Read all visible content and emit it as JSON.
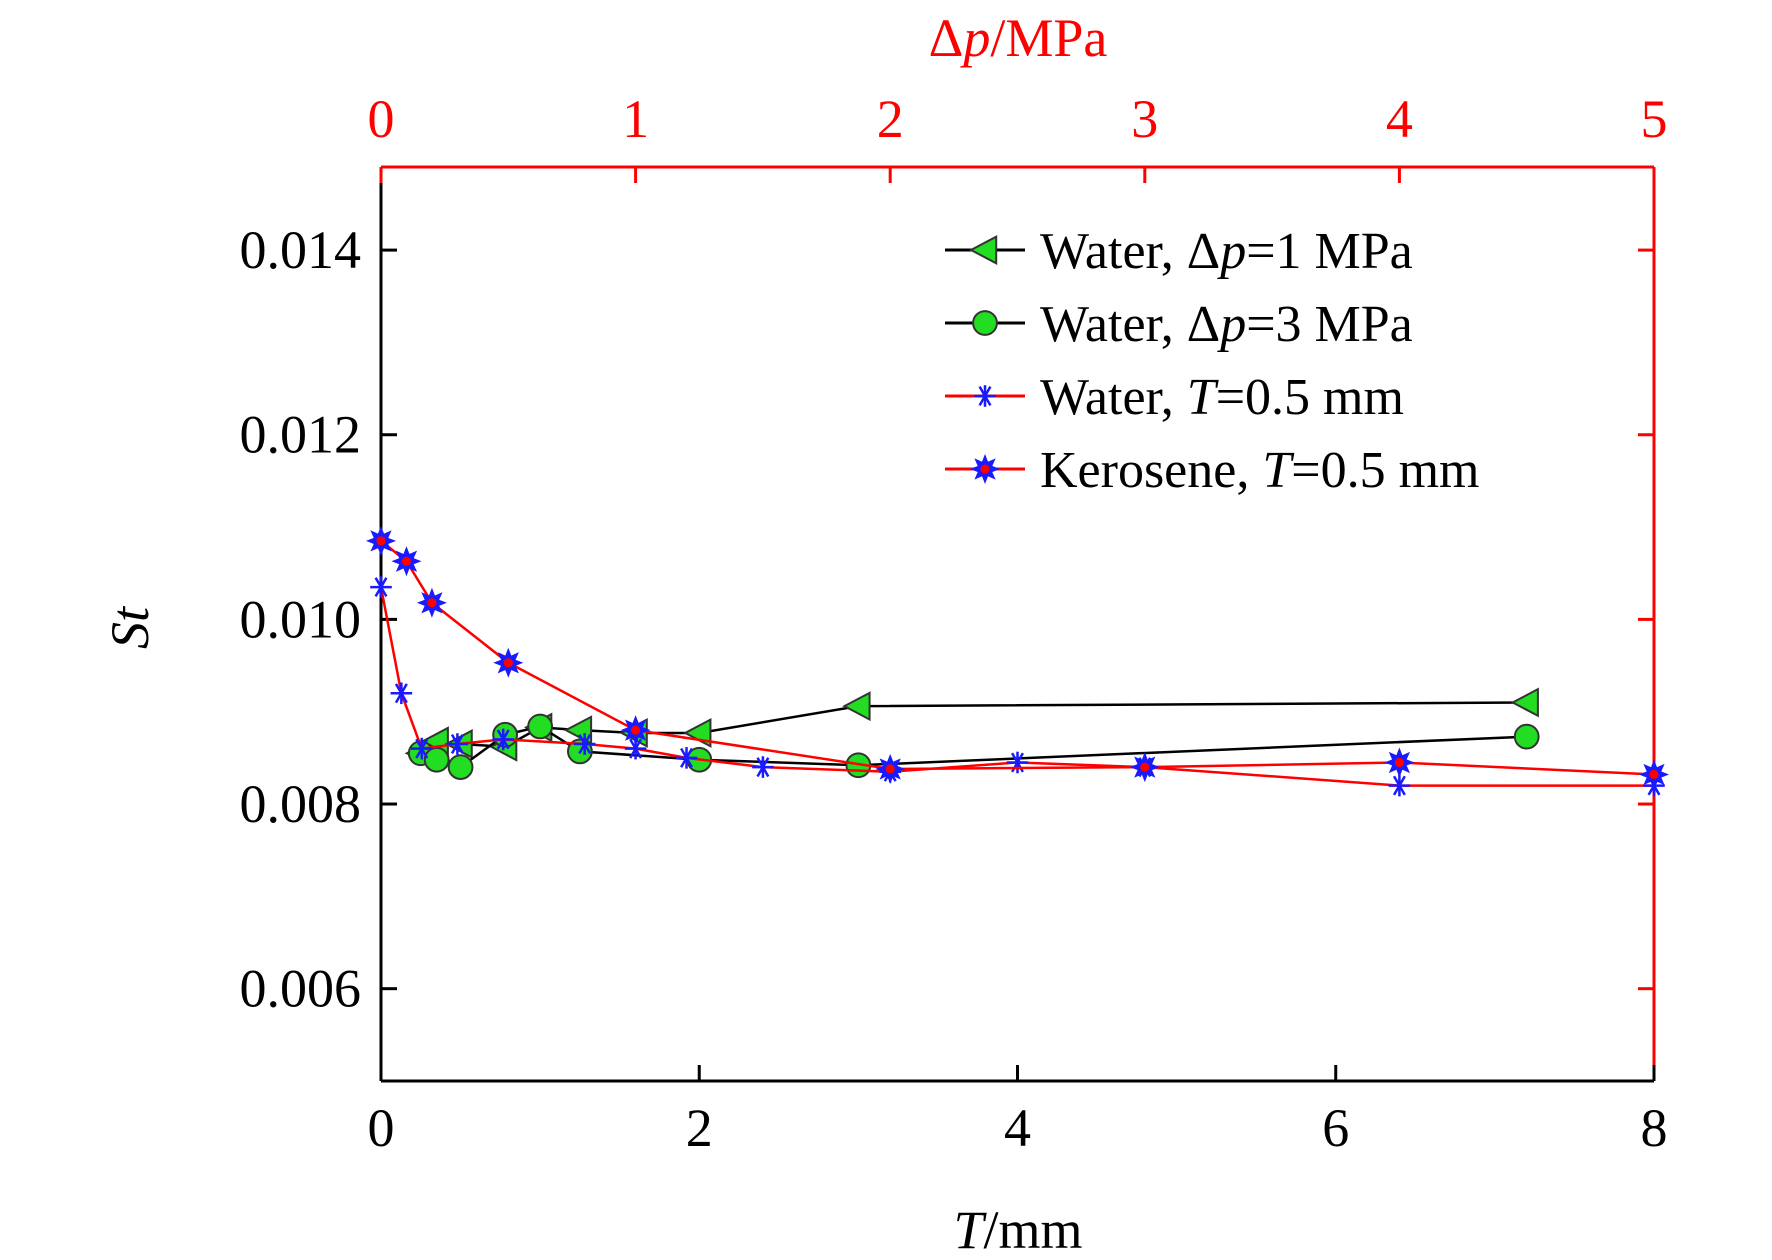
{
  "chart_data": {
    "type": "line",
    "xlabel": {
      "pre": "",
      "italic": "T",
      "post": "/mm"
    },
    "ylabel": {
      "italic": "St"
    },
    "x2label": {
      "pre": "Δ",
      "italic": "p",
      "post": "/MPa"
    },
    "xlim": [
      0,
      8
    ],
    "ylim": [
      0.005,
      0.0149
    ],
    "x2lim": [
      0,
      5
    ],
    "xticks": [
      "0",
      "2",
      "4",
      "6",
      "8"
    ],
    "yticks": [
      "0.006",
      "0.008",
      "0.010",
      "0.012",
      "0.014"
    ],
    "x2ticks": [
      "0",
      "1",
      "2",
      "3",
      "4",
      "5"
    ],
    "colors": {
      "black": "#000000",
      "red": "#ff0000",
      "green": "#22dd22",
      "blue": "#1a1aff",
      "top_axis": "#ff0000"
    },
    "legend_position": "top-right",
    "series": [
      {
        "name": {
          "pre": "Water, Δ",
          "italic": "p",
          "post": "=1 MPa"
        },
        "axis": "bottom",
        "marker": "triangle-left",
        "line_color": "#000000",
        "marker_color": "#22dd22",
        "x": [
          0.25,
          0.35,
          0.5,
          0.78,
          1.0,
          1.25,
          1.6,
          2.0,
          3.0,
          7.2
        ],
        "y": [
          0.00855,
          0.00868,
          0.00865,
          0.00862,
          0.00883,
          0.0088,
          0.00877,
          0.00877,
          0.00906,
          0.0091
        ]
      },
      {
        "name": {
          "pre": "Water, Δ",
          "italic": "p",
          "post": "=3 MPa"
        },
        "axis": "bottom",
        "marker": "circle",
        "line_color": "#000000",
        "marker_color": "#22dd22",
        "x": [
          0.25,
          0.35,
          0.5,
          0.78,
          1.0,
          1.25,
          2.0,
          3.0,
          7.2
        ],
        "y": [
          0.00855,
          0.00848,
          0.0084,
          0.00875,
          0.00884,
          0.00857,
          0.00848,
          0.00842,
          0.00873
        ]
      },
      {
        "name": {
          "pre": "Water, ",
          "italic": "T",
          "post": "=0.5 mm"
        },
        "axis": "top",
        "marker": "asterisk",
        "line_color": "#ff0000",
        "marker_color": "#1a1aff",
        "x": [
          0.0,
          0.08,
          0.16,
          0.3,
          0.48,
          0.8,
          1.0,
          1.2,
          1.5,
          2.0,
          2.5,
          3.0,
          4.0,
          5.0
        ],
        "y": [
          0.01035,
          0.0092,
          0.0086,
          0.00865,
          0.0087,
          0.00865,
          0.0086,
          0.0085,
          0.0084,
          0.00835,
          0.00845,
          0.0084,
          0.0082,
          0.0082
        ]
      },
      {
        "name": {
          "pre": "Kerosene, ",
          "italic": "T",
          "post": "=0.5 mm"
        },
        "axis": "top",
        "marker": "star",
        "line_color": "#ff0000",
        "marker_color": "#1a1aff",
        "x": [
          0.0,
          0.1,
          0.2,
          0.5,
          1.0,
          2.0,
          3.0,
          4.0,
          5.0
        ],
        "y": [
          0.01085,
          0.01063,
          0.01018,
          0.00953,
          0.0088,
          0.00838,
          0.0084,
          0.00845,
          0.00832
        ]
      }
    ]
  }
}
